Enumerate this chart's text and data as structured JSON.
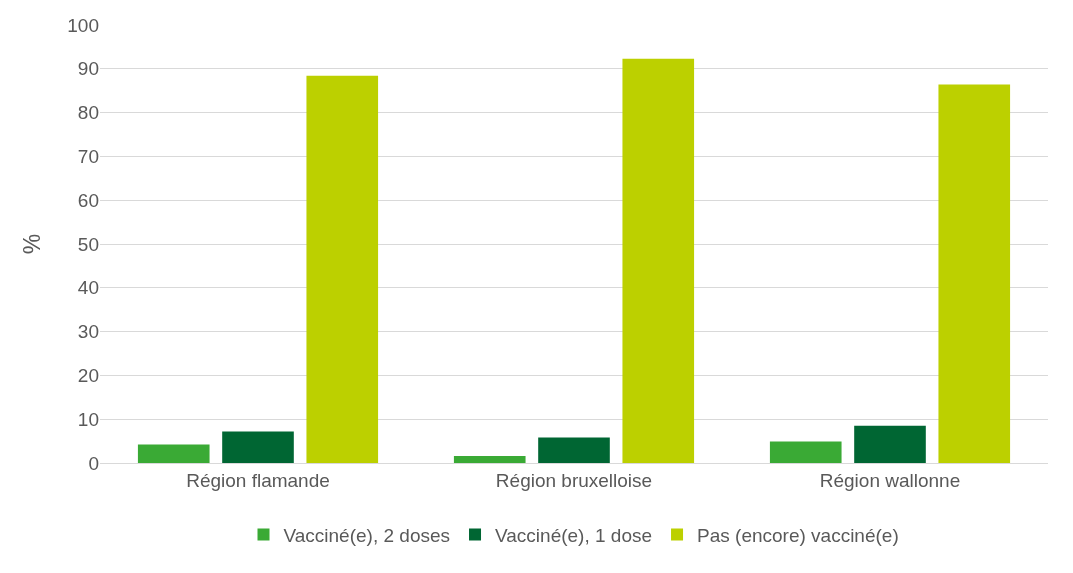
{
  "chart_data": {
    "type": "bar",
    "ylabel": "%",
    "categories": [
      "Région flamande",
      "Région bruxelloise",
      "Région wallonne"
    ],
    "series": [
      {
        "name": "Vacciné(e), 2 doses",
        "color": "#3aaa35",
        "values": [
          4.2,
          1.6,
          4.9
        ]
      },
      {
        "name": "Vacciné(e), 1 dose",
        "color": "#006633",
        "values": [
          7.2,
          5.8,
          8.5
        ]
      },
      {
        "name": "Pas (encore) vacciné(e)",
        "color": "#bcd000",
        "values": [
          88.4,
          92.3,
          86.4
        ]
      }
    ],
    "ylim": [
      0,
      100
    ],
    "yticks": [
      0,
      10,
      20,
      30,
      40,
      50,
      60,
      70,
      80,
      90,
      100
    ],
    "grid": "y",
    "legend": "bottom"
  }
}
